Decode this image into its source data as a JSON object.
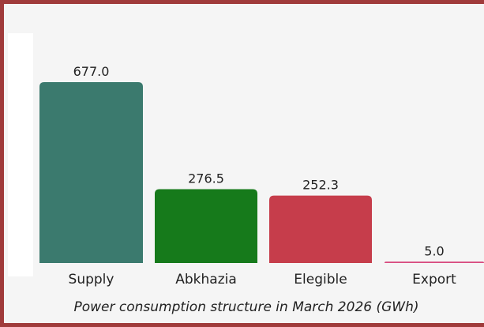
{
  "chart_data": {
    "type": "bar",
    "title": "Power consumption structure in March 2026 (GWh)",
    "categories": [
      "Supply",
      "Abkhazia",
      "Elegible",
      "Export"
    ],
    "values": [
      677,
      276.5,
      252.3,
      5
    ],
    "value_labels": [
      "677.0",
      "276.5",
      "252.3",
      "5.0"
    ],
    "colors": [
      "#3b7a6e",
      "#167a1b",
      "#c63d4b",
      "#d8497e"
    ]
  }
}
